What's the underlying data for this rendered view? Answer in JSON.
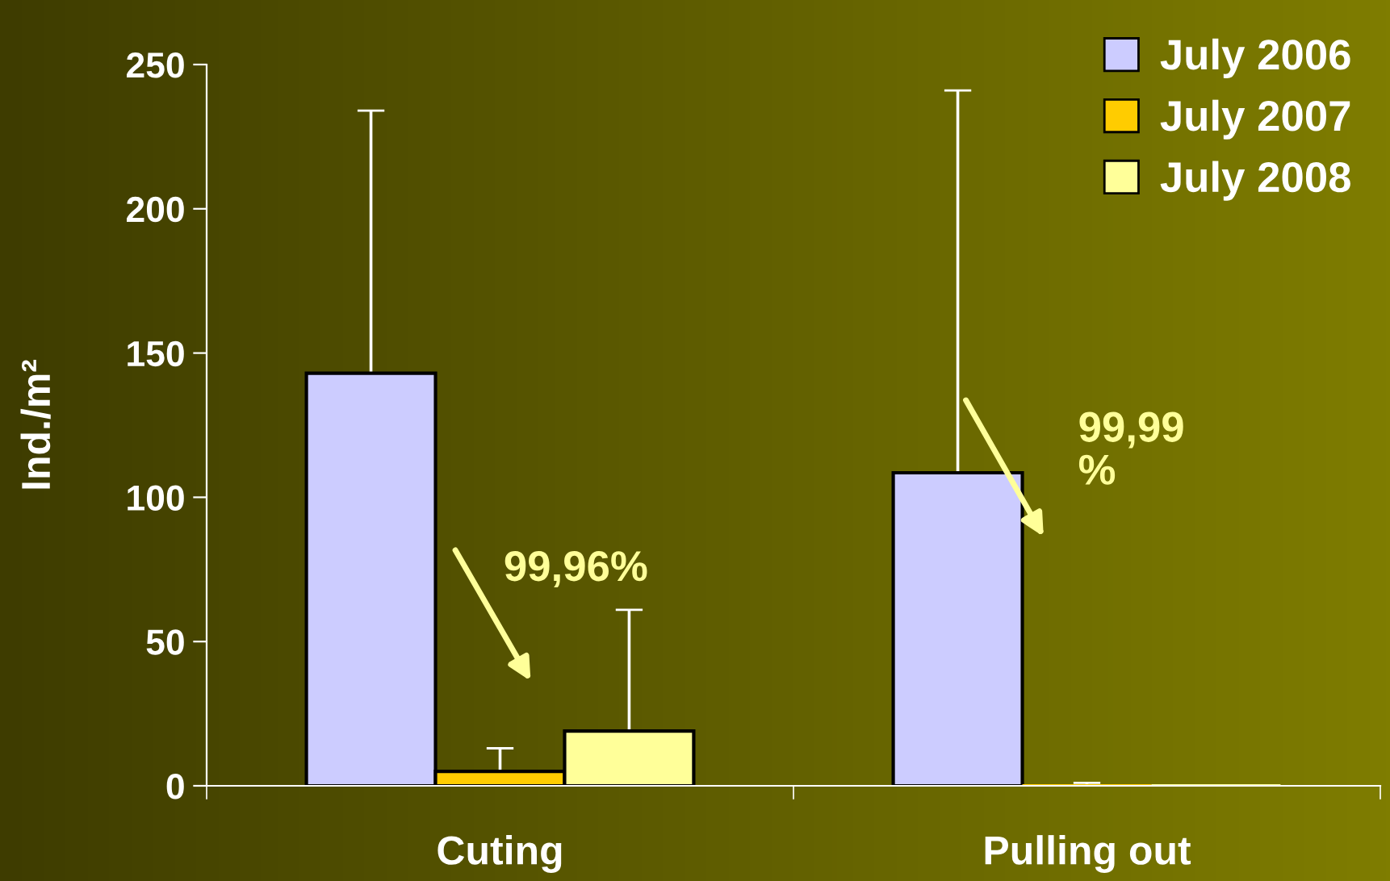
{
  "chart_data": {
    "type": "bar",
    "ylabel": "Ind./m²",
    "categories": [
      "Cuting",
      "Pulling out"
    ],
    "series": [
      {
        "name": "July 2006",
        "color": "#ccccff",
        "values": [
          143,
          108.5
        ],
        "errors": [
          [
            143,
            234
          ],
          [
            108.5,
            241
          ]
        ]
      },
      {
        "name": "July 2007",
        "color": "#ffcc00",
        "values": [
          5,
          0
        ],
        "errors": [
          [
            5,
            13
          ],
          [
            0,
            1
          ]
        ]
      },
      {
        "name": "July 2008",
        "color": "#ffff99",
        "values": [
          19,
          0
        ],
        "errors": [
          [
            19,
            61
          ],
          [
            0,
            0
          ]
        ]
      }
    ],
    "ylim": [
      0,
      250
    ],
    "yticks": [
      0,
      50,
      100,
      150,
      200,
      250
    ],
    "annotations": [
      "99,96%",
      "99,99 %"
    ],
    "legend": "top right",
    "grid": false
  }
}
